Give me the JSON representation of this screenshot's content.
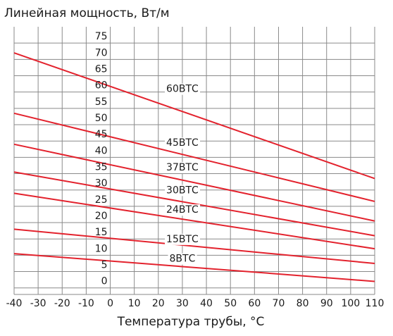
{
  "chart_data": {
    "type": "line",
    "title": "",
    "ylabel": "Линейная мощность, Вт/м",
    "xlabel": "Температура трубы, °С",
    "x": [
      -40,
      110
    ],
    "xlim": [
      -40,
      110
    ],
    "xticks": [
      -40,
      -30,
      -20,
      -10,
      0,
      10,
      20,
      30,
      40,
      50,
      60,
      70,
      80,
      90,
      100,
      110
    ],
    "ylim": [
      -2,
      80
    ],
    "yticks": [
      0,
      5,
      10,
      15,
      20,
      25,
      30,
      35,
      40,
      45,
      50,
      55,
      60,
      65,
      70,
      75
    ],
    "grid": true,
    "series": [
      {
        "name": "60ВТС",
        "values": [
          72,
          33.5
        ],
        "label_at": [
          30,
          60
        ]
      },
      {
        "name": "45ВТС",
        "values": [
          53.5,
          26.5
        ],
        "label_at": [
          30,
          43.5
        ]
      },
      {
        "name": "37ВТС",
        "values": [
          44,
          20.5
        ],
        "label_at": [
          30,
          36
        ]
      },
      {
        "name": "30ВТС",
        "values": [
          35.5,
          16
        ],
        "label_at": [
          30,
          29
        ]
      },
      {
        "name": "24ВТС",
        "values": [
          29,
          12
        ],
        "label_at": [
          30,
          23
        ]
      },
      {
        "name": "15ВТС",
        "values": [
          18,
          7.5
        ],
        "label_at": [
          30,
          14
        ]
      },
      {
        "name": "8ВТС",
        "values": [
          10.5,
          2
        ],
        "label_at": [
          30,
          8
        ]
      }
    ],
    "colors": {
      "line": "#e3222d",
      "grid": "#8a8a8a",
      "text": "#1a1a1a",
      "background": "#ffffff"
    }
  }
}
